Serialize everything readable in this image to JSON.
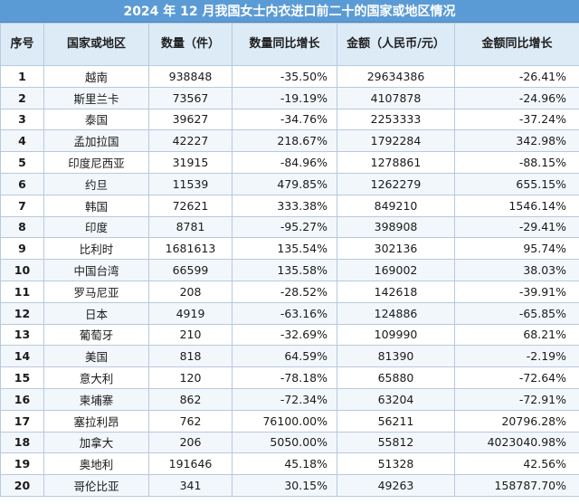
{
  "title": "2024 年 12 月我国女士内衣进口前二十的国家或地区情况",
  "headers": {
    "index": "序号",
    "country": "国家或地区",
    "quantity": "数量（件）",
    "quantity_yoy": "数量同比增长",
    "amount": "金额（人民币/元）",
    "amount_yoy": "金额同比增长"
  },
  "rows": [
    {
      "index": "1",
      "country": "越南",
      "quantity": "938848",
      "quantity_yoy": "-35.50%",
      "amount": "29634386",
      "amount_yoy": "-26.41%"
    },
    {
      "index": "2",
      "country": "斯里兰卡",
      "quantity": "73567",
      "quantity_yoy": "-19.19%",
      "amount": "4107878",
      "amount_yoy": "-24.96%"
    },
    {
      "index": "3",
      "country": "泰国",
      "quantity": "39627",
      "quantity_yoy": "-34.76%",
      "amount": "2253333",
      "amount_yoy": "-37.24%"
    },
    {
      "index": "4",
      "country": "孟加拉国",
      "quantity": "42227",
      "quantity_yoy": "218.67%",
      "amount": "1792284",
      "amount_yoy": "342.98%"
    },
    {
      "index": "5",
      "country": "印度尼西亚",
      "quantity": "31915",
      "quantity_yoy": "-84.96%",
      "amount": "1278861",
      "amount_yoy": "-88.15%"
    },
    {
      "index": "6",
      "country": "约旦",
      "quantity": "11539",
      "quantity_yoy": "479.85%",
      "amount": "1262279",
      "amount_yoy": "655.15%"
    },
    {
      "index": "7",
      "country": "韩国",
      "quantity": "72621",
      "quantity_yoy": "333.38%",
      "amount": "849210",
      "amount_yoy": "1546.14%"
    },
    {
      "index": "8",
      "country": "印度",
      "quantity": "8781",
      "quantity_yoy": "-95.27%",
      "amount": "398908",
      "amount_yoy": "-29.41%"
    },
    {
      "index": "9",
      "country": "比利时",
      "quantity": "1681613",
      "quantity_yoy": "135.54%",
      "amount": "302136",
      "amount_yoy": "95.74%"
    },
    {
      "index": "10",
      "country": "中国台湾",
      "quantity": "66599",
      "quantity_yoy": "135.58%",
      "amount": "169002",
      "amount_yoy": "38.03%"
    },
    {
      "index": "11",
      "country": "罗马尼亚",
      "quantity": "208",
      "quantity_yoy": "-28.52%",
      "amount": "142618",
      "amount_yoy": "-39.91%"
    },
    {
      "index": "12",
      "country": "日本",
      "quantity": "4919",
      "quantity_yoy": "-63.16%",
      "amount": "124886",
      "amount_yoy": "-65.85%"
    },
    {
      "index": "13",
      "country": "葡萄牙",
      "quantity": "210",
      "quantity_yoy": "-32.69%",
      "amount": "109990",
      "amount_yoy": "68.21%"
    },
    {
      "index": "14",
      "country": "美国",
      "quantity": "818",
      "quantity_yoy": "64.59%",
      "amount": "81390",
      "amount_yoy": "-2.19%"
    },
    {
      "index": "15",
      "country": "意大利",
      "quantity": "120",
      "quantity_yoy": "-78.18%",
      "amount": "65880",
      "amount_yoy": "-72.64%"
    },
    {
      "index": "16",
      "country": "柬埔寨",
      "quantity": "862",
      "quantity_yoy": "-72.34%",
      "amount": "63204",
      "amount_yoy": "-72.91%"
    },
    {
      "index": "17",
      "country": "塞拉利昂",
      "quantity": "762",
      "quantity_yoy": "76100.00%",
      "amount": "56211",
      "amount_yoy": "20796.28%"
    },
    {
      "index": "18",
      "country": "加拿大",
      "quantity": "206",
      "quantity_yoy": "5050.00%",
      "amount": "55812",
      "amount_yoy": "4023040.98%"
    },
    {
      "index": "19",
      "country": "奥地利",
      "quantity": "191646",
      "quantity_yoy": "45.18%",
      "amount": "51328",
      "amount_yoy": "42.56%"
    },
    {
      "index": "20",
      "country": "哥伦比亚",
      "quantity": "341",
      "quantity_yoy": "30.15%",
      "amount": "49263",
      "amount_yoy": "158787.70%"
    }
  ]
}
